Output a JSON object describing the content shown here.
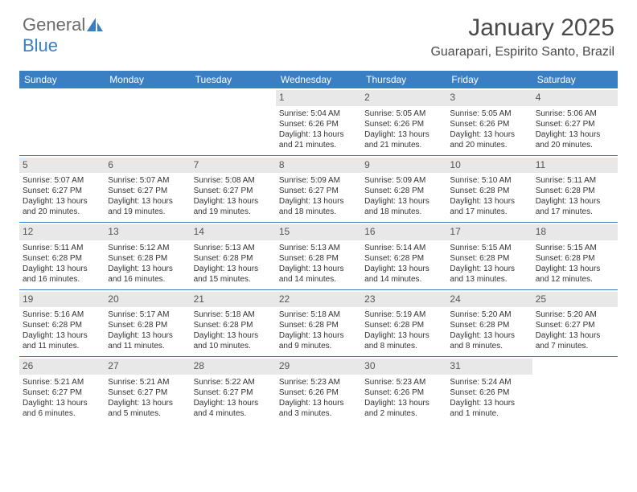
{
  "logo": {
    "text1": "General",
    "text2": "Blue",
    "color_gray": "#6b6b6b",
    "color_blue": "#3a7fc4"
  },
  "header": {
    "month": "January 2025",
    "location": "Guarapari, Espirito Santo, Brazil"
  },
  "colors": {
    "header_bg": "#3a7fc4",
    "header_text": "#ffffff",
    "daynum_bg": "#e8e8e8",
    "week_border": "#3a7fc4",
    "text": "#333333"
  },
  "dayNames": [
    "Sunday",
    "Monday",
    "Tuesday",
    "Wednesday",
    "Thursday",
    "Friday",
    "Saturday"
  ],
  "weeks": [
    [
      null,
      null,
      null,
      {
        "n": "1",
        "sr": "Sunrise: 5:04 AM",
        "ss": "Sunset: 6:26 PM",
        "d1": "Daylight: 13 hours",
        "d2": "and 21 minutes."
      },
      {
        "n": "2",
        "sr": "Sunrise: 5:05 AM",
        "ss": "Sunset: 6:26 PM",
        "d1": "Daylight: 13 hours",
        "d2": "and 21 minutes."
      },
      {
        "n": "3",
        "sr": "Sunrise: 5:05 AM",
        "ss": "Sunset: 6:26 PM",
        "d1": "Daylight: 13 hours",
        "d2": "and 20 minutes."
      },
      {
        "n": "4",
        "sr": "Sunrise: 5:06 AM",
        "ss": "Sunset: 6:27 PM",
        "d1": "Daylight: 13 hours",
        "d2": "and 20 minutes."
      }
    ],
    [
      {
        "n": "5",
        "sr": "Sunrise: 5:07 AM",
        "ss": "Sunset: 6:27 PM",
        "d1": "Daylight: 13 hours",
        "d2": "and 20 minutes."
      },
      {
        "n": "6",
        "sr": "Sunrise: 5:07 AM",
        "ss": "Sunset: 6:27 PM",
        "d1": "Daylight: 13 hours",
        "d2": "and 19 minutes."
      },
      {
        "n": "7",
        "sr": "Sunrise: 5:08 AM",
        "ss": "Sunset: 6:27 PM",
        "d1": "Daylight: 13 hours",
        "d2": "and 19 minutes."
      },
      {
        "n": "8",
        "sr": "Sunrise: 5:09 AM",
        "ss": "Sunset: 6:27 PM",
        "d1": "Daylight: 13 hours",
        "d2": "and 18 minutes."
      },
      {
        "n": "9",
        "sr": "Sunrise: 5:09 AM",
        "ss": "Sunset: 6:28 PM",
        "d1": "Daylight: 13 hours",
        "d2": "and 18 minutes."
      },
      {
        "n": "10",
        "sr": "Sunrise: 5:10 AM",
        "ss": "Sunset: 6:28 PM",
        "d1": "Daylight: 13 hours",
        "d2": "and 17 minutes."
      },
      {
        "n": "11",
        "sr": "Sunrise: 5:11 AM",
        "ss": "Sunset: 6:28 PM",
        "d1": "Daylight: 13 hours",
        "d2": "and 17 minutes."
      }
    ],
    [
      {
        "n": "12",
        "sr": "Sunrise: 5:11 AM",
        "ss": "Sunset: 6:28 PM",
        "d1": "Daylight: 13 hours",
        "d2": "and 16 minutes."
      },
      {
        "n": "13",
        "sr": "Sunrise: 5:12 AM",
        "ss": "Sunset: 6:28 PM",
        "d1": "Daylight: 13 hours",
        "d2": "and 16 minutes."
      },
      {
        "n": "14",
        "sr": "Sunrise: 5:13 AM",
        "ss": "Sunset: 6:28 PM",
        "d1": "Daylight: 13 hours",
        "d2": "and 15 minutes."
      },
      {
        "n": "15",
        "sr": "Sunrise: 5:13 AM",
        "ss": "Sunset: 6:28 PM",
        "d1": "Daylight: 13 hours",
        "d2": "and 14 minutes."
      },
      {
        "n": "16",
        "sr": "Sunrise: 5:14 AM",
        "ss": "Sunset: 6:28 PM",
        "d1": "Daylight: 13 hours",
        "d2": "and 14 minutes."
      },
      {
        "n": "17",
        "sr": "Sunrise: 5:15 AM",
        "ss": "Sunset: 6:28 PM",
        "d1": "Daylight: 13 hours",
        "d2": "and 13 minutes."
      },
      {
        "n": "18",
        "sr": "Sunrise: 5:15 AM",
        "ss": "Sunset: 6:28 PM",
        "d1": "Daylight: 13 hours",
        "d2": "and 12 minutes."
      }
    ],
    [
      {
        "n": "19",
        "sr": "Sunrise: 5:16 AM",
        "ss": "Sunset: 6:28 PM",
        "d1": "Daylight: 13 hours",
        "d2": "and 11 minutes."
      },
      {
        "n": "20",
        "sr": "Sunrise: 5:17 AM",
        "ss": "Sunset: 6:28 PM",
        "d1": "Daylight: 13 hours",
        "d2": "and 11 minutes."
      },
      {
        "n": "21",
        "sr": "Sunrise: 5:18 AM",
        "ss": "Sunset: 6:28 PM",
        "d1": "Daylight: 13 hours",
        "d2": "and 10 minutes."
      },
      {
        "n": "22",
        "sr": "Sunrise: 5:18 AM",
        "ss": "Sunset: 6:28 PM",
        "d1": "Daylight: 13 hours",
        "d2": "and 9 minutes."
      },
      {
        "n": "23",
        "sr": "Sunrise: 5:19 AM",
        "ss": "Sunset: 6:28 PM",
        "d1": "Daylight: 13 hours",
        "d2": "and 8 minutes."
      },
      {
        "n": "24",
        "sr": "Sunrise: 5:20 AM",
        "ss": "Sunset: 6:28 PM",
        "d1": "Daylight: 13 hours",
        "d2": "and 8 minutes."
      },
      {
        "n": "25",
        "sr": "Sunrise: 5:20 AM",
        "ss": "Sunset: 6:27 PM",
        "d1": "Daylight: 13 hours",
        "d2": "and 7 minutes."
      }
    ],
    [
      {
        "n": "26",
        "sr": "Sunrise: 5:21 AM",
        "ss": "Sunset: 6:27 PM",
        "d1": "Daylight: 13 hours",
        "d2": "and 6 minutes."
      },
      {
        "n": "27",
        "sr": "Sunrise: 5:21 AM",
        "ss": "Sunset: 6:27 PM",
        "d1": "Daylight: 13 hours",
        "d2": "and 5 minutes."
      },
      {
        "n": "28",
        "sr": "Sunrise: 5:22 AM",
        "ss": "Sunset: 6:27 PM",
        "d1": "Daylight: 13 hours",
        "d2": "and 4 minutes."
      },
      {
        "n": "29",
        "sr": "Sunrise: 5:23 AM",
        "ss": "Sunset: 6:26 PM",
        "d1": "Daylight: 13 hours",
        "d2": "and 3 minutes."
      },
      {
        "n": "30",
        "sr": "Sunrise: 5:23 AM",
        "ss": "Sunset: 6:26 PM",
        "d1": "Daylight: 13 hours",
        "d2": "and 2 minutes."
      },
      {
        "n": "31",
        "sr": "Sunrise: 5:24 AM",
        "ss": "Sunset: 6:26 PM",
        "d1": "Daylight: 13 hours",
        "d2": "and 1 minute."
      },
      null
    ]
  ]
}
